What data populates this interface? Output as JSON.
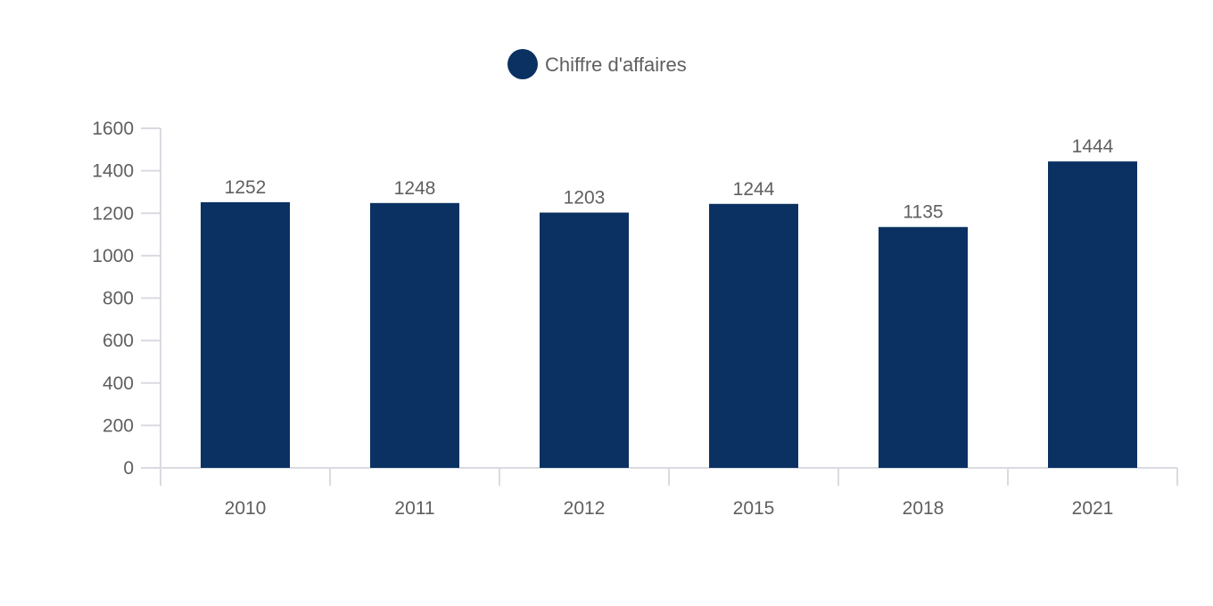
{
  "chart_data": {
    "type": "bar",
    "categories": [
      "2010",
      "2011",
      "2012",
      "2015",
      "2018",
      "2021"
    ],
    "series": [
      {
        "name": "Chiffre d'affaires",
        "color": "#0a3161",
        "values": [
          1252,
          1248,
          1203,
          1244,
          1135,
          1444
        ]
      }
    ],
    "ylim": [
      0,
      1600
    ],
    "yticks": [
      0,
      200,
      400,
      600,
      800,
      1000,
      1200,
      1400,
      1600
    ],
    "grid": false,
    "legend_position": "top-center",
    "data_labels": true
  }
}
